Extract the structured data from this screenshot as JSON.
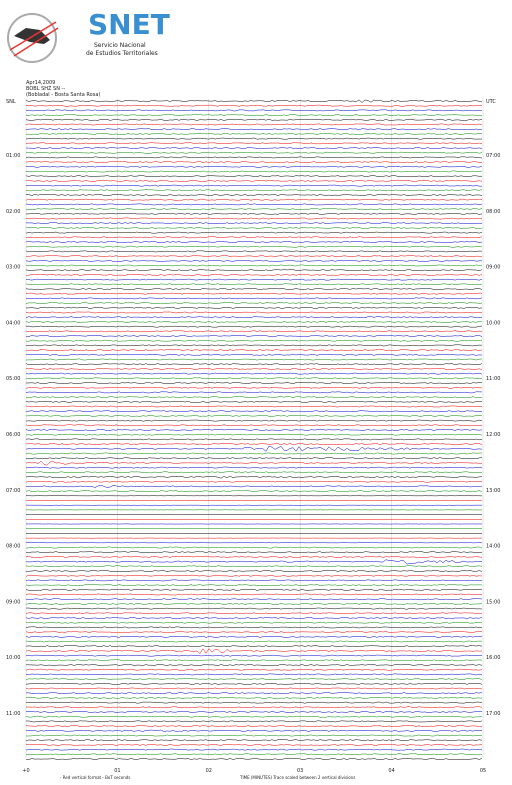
{
  "logo": {
    "title": "SNET",
    "subtitle_1": "Servicio Nacional",
    "subtitle_2": "de Estudios Territoriales"
  },
  "header": {
    "date": "Apr14,2009",
    "station": "BOBL SHZ SN --",
    "location": "(Bobladal - Bosta Santa Rosa)"
  },
  "left_top": "SNL",
  "right_top": "UTC",
  "left_times": [
    "01:00",
    "02:00",
    "03:00",
    "04:00",
    "05:00",
    "06:00",
    "07:00",
    "08:00",
    "09:00",
    "10:00",
    "11:00"
  ],
  "right_times": [
    "07:00",
    "08:00",
    "09:00",
    "10:00",
    "11:00",
    "12:00",
    "13:00",
    "14:00",
    "15:00",
    "16:00",
    "17:00"
  ],
  "x_labels": [
    "+0",
    "01",
    "02",
    "03",
    "04",
    "05"
  ],
  "footer": {
    "left": "- Red vertical format - BoT seconds",
    "center": "TIME (MINUTES)   Trace scaled between 2 vertical divisions"
  }
}
